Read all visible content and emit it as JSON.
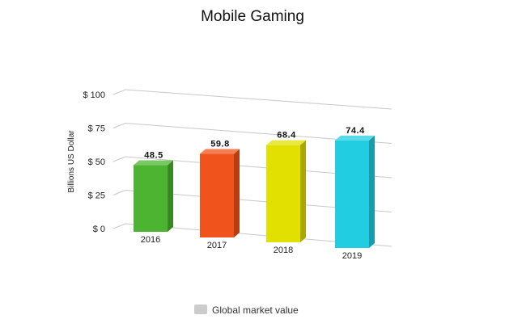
{
  "chart_data": {
    "type": "bar",
    "title": "Mobile Gaming",
    "ylabel": "Billions US Dollar",
    "xlabel": "",
    "categories": [
      "2016",
      "2017",
      "2018",
      "2019"
    ],
    "series": [
      {
        "name": "Global market value",
        "values": [
          48.5,
          59.8,
          68.4,
          74.4
        ]
      }
    ],
    "data_labels": [
      "48.5",
      "59.8",
      "68.4",
      "74.4"
    ],
    "ylim": [
      0,
      100
    ],
    "yticks": [
      0,
      25,
      50,
      75,
      100
    ],
    "ytick_labels": [
      "$ 0",
      "$ 25",
      "$ 50",
      "$ 75",
      "$ 100"
    ],
    "bar_colors": [
      "#4db431",
      "#f0541c",
      "#e1e000",
      "#22cde2"
    ],
    "legend_color": "#cccccc",
    "grid": true,
    "legend_position": "bottom-center",
    "style": "3d-perspective"
  }
}
